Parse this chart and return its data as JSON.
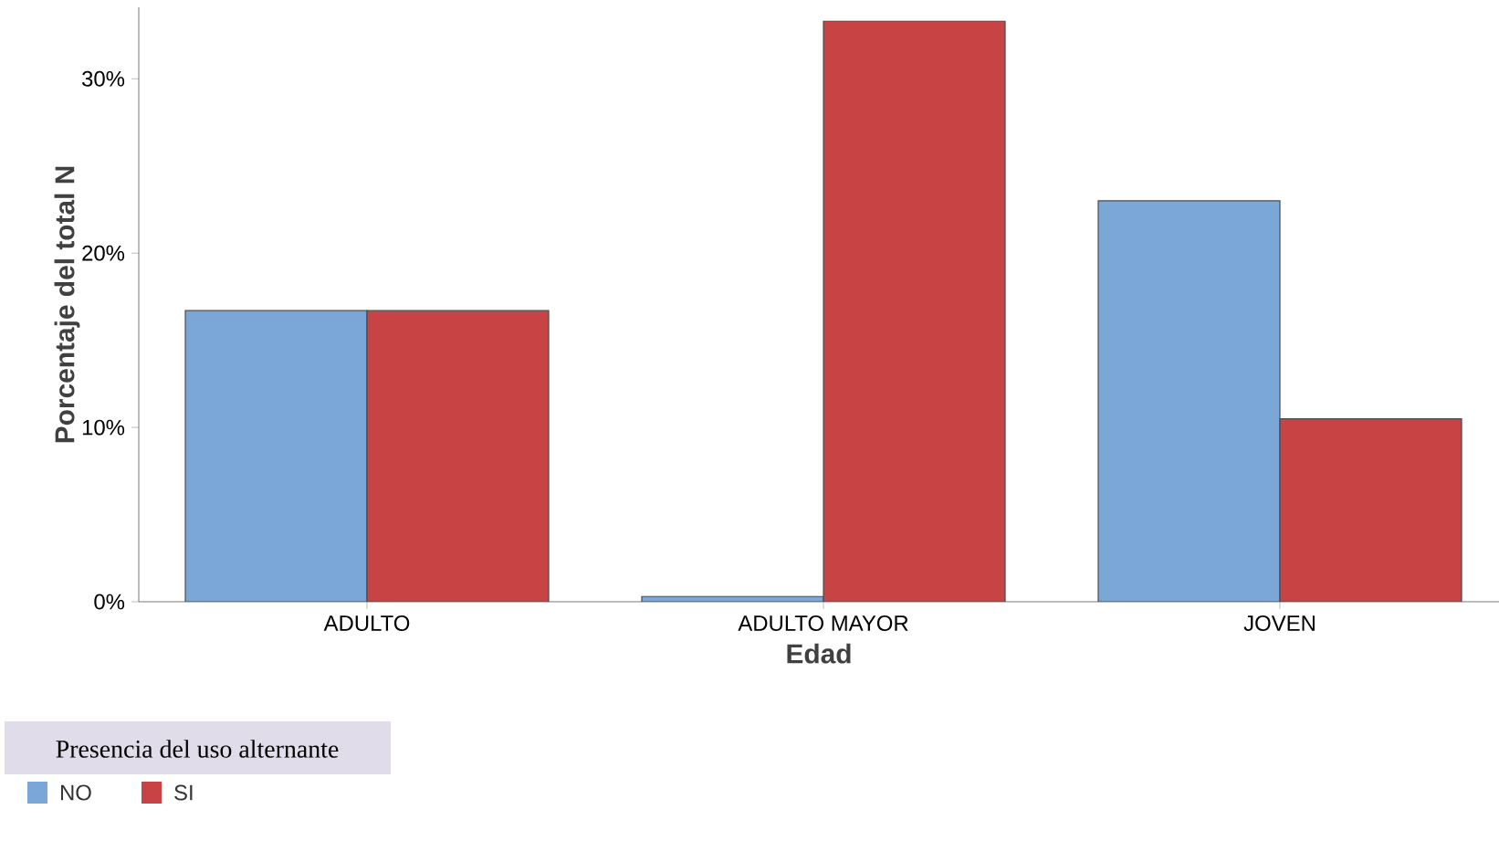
{
  "chart_data": {
    "type": "bar",
    "xlabel": "Edad",
    "ylabel": "Porcentaje del total N",
    "legend_title": "Presencia del uso alternante",
    "categories": [
      "ADULTO",
      "ADULTO MAYOR",
      "JOVEN"
    ],
    "series": [
      {
        "name": "NO",
        "color": "#7ba6d8",
        "values": [
          16.7,
          0.3,
          23.0
        ]
      },
      {
        "name": "SI",
        "color": "#c84444",
        "values": [
          16.7,
          33.3,
          10.5
        ]
      }
    ],
    "ylim": [
      0,
      34.1
    ],
    "yticks": [
      {
        "value": 0,
        "label": "0%"
      },
      {
        "value": 10,
        "label": "10%"
      },
      {
        "value": 20,
        "label": "20%"
      },
      {
        "value": 30,
        "label": "30%"
      }
    ],
    "grid": false,
    "legend": "bottom left"
  }
}
